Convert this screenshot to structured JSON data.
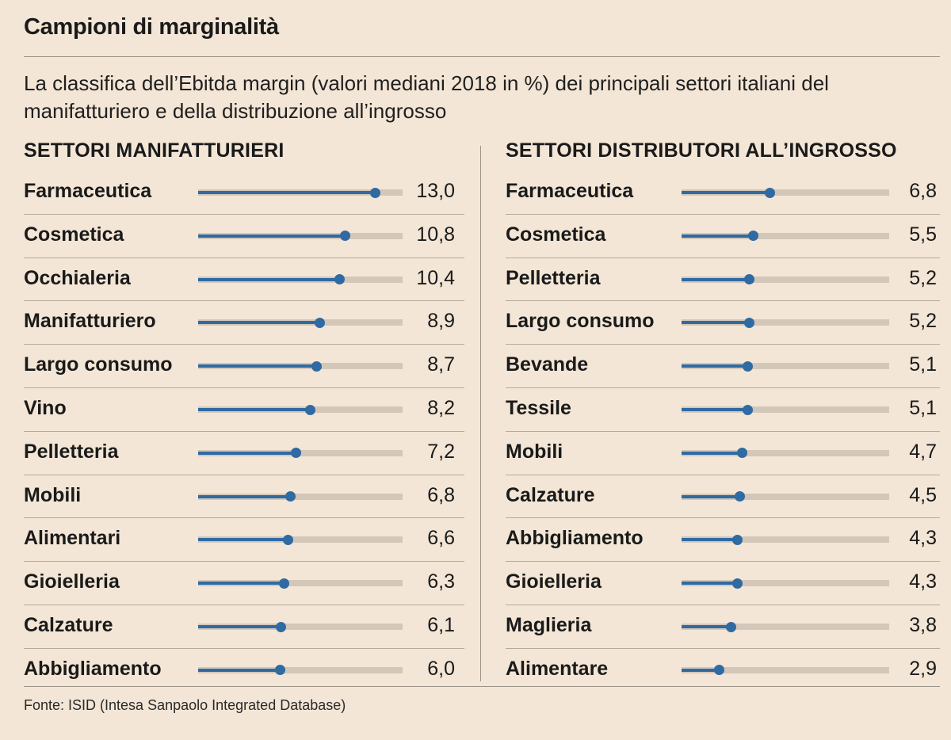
{
  "title": "Campioni di marginalità",
  "subtitle": "La classifica dell’Ebitda margin (valori mediani 2018 in %) dei principali settori italiani del manifatturiero e della distribuzione all’ingrosso",
  "source": "Fonte: ISID (Intesa Sanpaolo Integrated Database)",
  "colors": {
    "background": "#f3e6d6",
    "bar": "#2f6aa3",
    "track": "#d3c7b9",
    "text": "#1a1a1a"
  },
  "chart_data": [
    {
      "type": "bar",
      "title": "SETTORI MANIFATTURIERI",
      "categories": [
        "Farmaceutica",
        "Cosmetica",
        "Occhialeria",
        "Manifatturiero",
        "Largo consumo",
        "Vino",
        "Pelletteria",
        "Mobili",
        "Alimentari",
        "Gioielleria",
        "Calzature",
        "Abbigliamento"
      ],
      "values": [
        13.0,
        10.8,
        10.4,
        8.9,
        8.7,
        8.2,
        7.2,
        6.8,
        6.6,
        6.3,
        6.1,
        6.0
      ],
      "labels": [
        "13,0",
        "10,8",
        "10,4",
        "8,9",
        "8,7",
        "8,2",
        "7,2",
        "6,8",
        "6,6",
        "6,3",
        "6,1",
        "6,0"
      ],
      "xlim": [
        0,
        15
      ],
      "unit": "%"
    },
    {
      "type": "bar",
      "title": "SETTORI DISTRIBUTORI ALL’INGROSSO",
      "categories": [
        "Farmaceutica",
        "Cosmetica",
        "Pelletteria",
        "Largo consumo",
        "Bevande",
        "Tessile",
        "Mobili",
        "Calzature",
        "Abbigliamento",
        "Gioielleria",
        "Maglieria",
        "Alimentare"
      ],
      "values": [
        6.8,
        5.5,
        5.2,
        5.2,
        5.1,
        5.1,
        4.7,
        4.5,
        4.3,
        4.3,
        3.8,
        2.9
      ],
      "labels": [
        "6,8",
        "5,5",
        "5,2",
        "5,2",
        "5,1",
        "5,1",
        "4,7",
        "4,5",
        "4,3",
        "4,3",
        "3,8",
        "2,9"
      ],
      "xlim": [
        0,
        16
      ],
      "unit": "%"
    }
  ]
}
